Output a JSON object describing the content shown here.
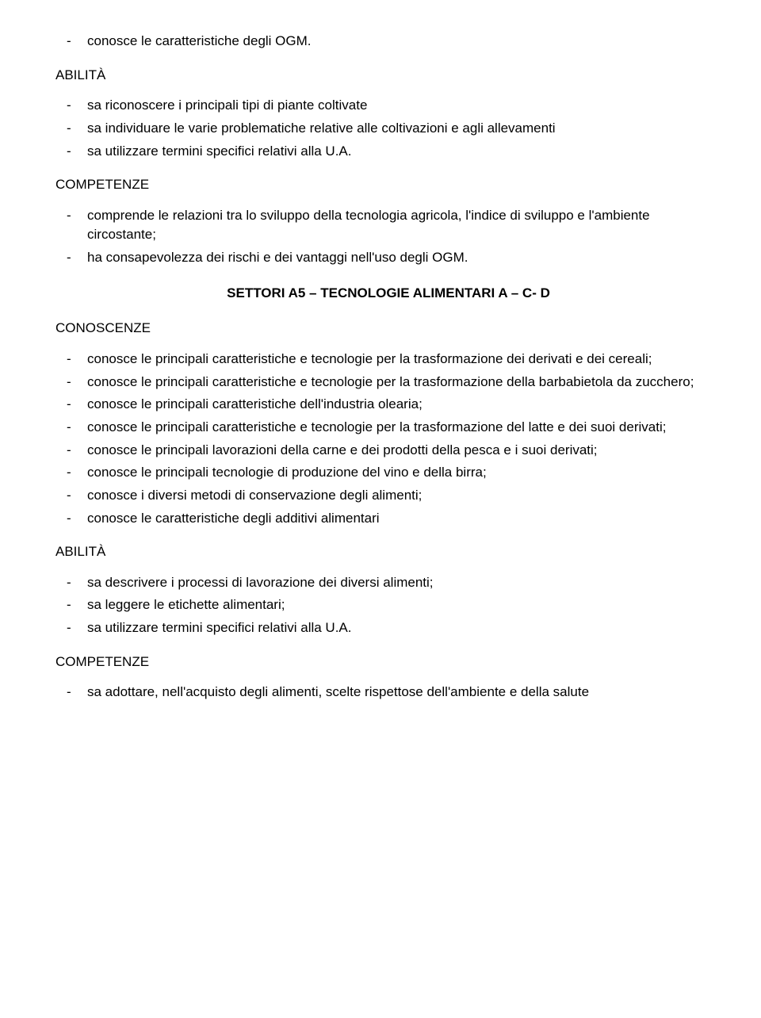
{
  "intro_items": [
    "conosce le caratteristiche degli OGM."
  ],
  "abilita1_heading": "ABILITÀ",
  "abilita1_items": [
    "sa riconoscere i principali tipi di piante coltivate",
    "sa individuare le varie problematiche relative alle coltivazioni e agli allevamenti",
    "sa utilizzare termini specifici relativi alla U.A."
  ],
  "competenze1_heading": "COMPETENZE",
  "competenze1_items": [
    "comprende le relazioni tra lo sviluppo della tecnologia agricola, l'indice di sviluppo e l'ambiente circostante;",
    "ha consapevolezza dei rischi e dei vantaggi nell'uso degli OGM."
  ],
  "settori_title": "SETTORI A5 – TECNOLOGIE ALIMENTARI A – C- D",
  "conoscenze_heading": "CONOSCENZE",
  "conoscenze_items": [
    "conosce le principali caratteristiche e tecnologie per la trasformazione dei derivati e dei cereali;",
    "conosce le principali caratteristiche e tecnologie per la trasformazione della barbabietola da zucchero;",
    "conosce le principali caratteristiche dell'industria olearia;",
    "conosce le principali caratteristiche e tecnologie per la trasformazione del latte e dei suoi derivati;",
    "conosce le principali lavorazioni della carne e dei prodotti della pesca e i suoi derivati;",
    "conosce le principali tecnologie di produzione del vino e della birra;",
    "conosce i diversi metodi di conservazione degli alimenti;",
    "conosce le caratteristiche degli additivi alimentari"
  ],
  "abilita2_heading": "ABILITÀ",
  "abilita2_items": [
    "sa descrivere i processi di lavorazione dei diversi alimenti;",
    "sa leggere le etichette alimentari;",
    "sa utilizzare termini specifici relativi alla U.A."
  ],
  "competenze2_heading": "COMPETENZE",
  "competenze2_items": [
    "sa adottare, nell'acquisto degli alimenti, scelte rispettose dell'ambiente e della salute"
  ]
}
